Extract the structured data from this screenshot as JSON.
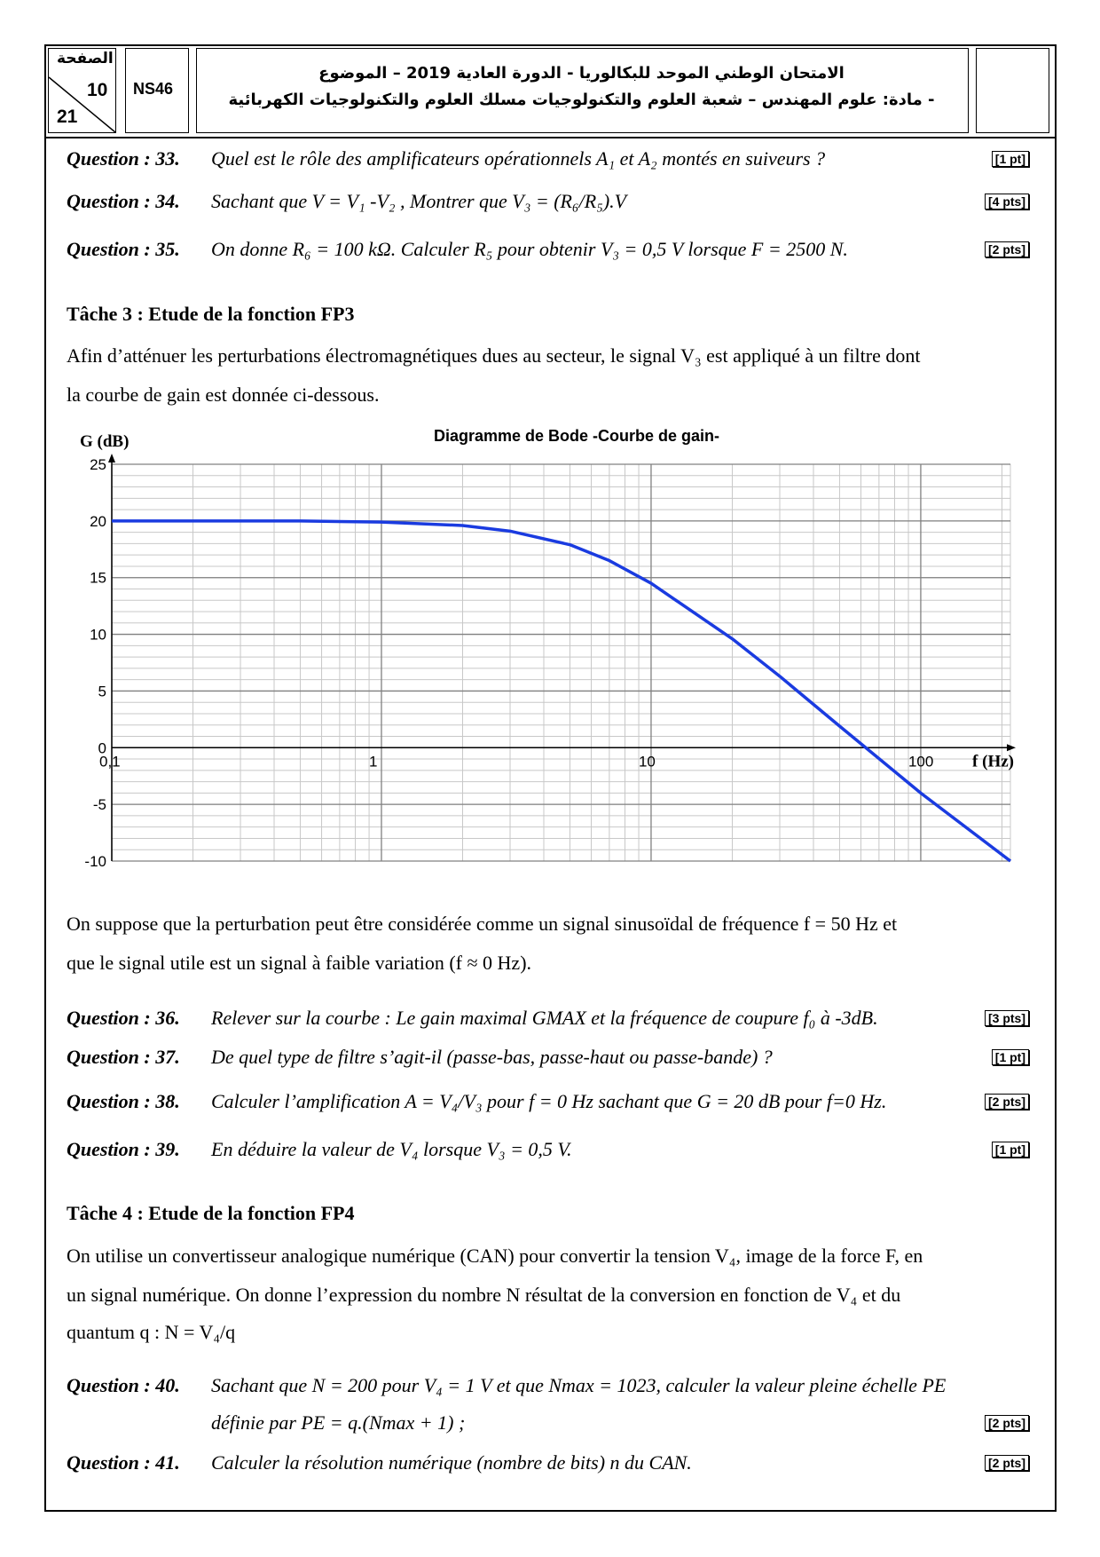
{
  "header": {
    "page_label": "الصفحة",
    "page": "10",
    "total": "21",
    "code": "NS46",
    "title_line1": "الامتحان الوطني الموحد للبكالوريا - الدورة العادية 2019 – الموضوع",
    "title_line2": "- مادة: علوم المهندس – شعبة العلوم والتكنولوجيات مسلك العلوم والتكنولوجيات الكهربائية"
  },
  "questions": [
    {
      "label": "Question : 33.",
      "text": "Quel est le rôle des amplificateurs opérationnels A₁ et A₂ montés en suiveurs ?",
      "points": "[1 pt]"
    },
    {
      "label": "Question : 34.",
      "text": "Sachant que  V = V₁ -V₂ , Montrer que V₃ = (R₆/R₅).V",
      "points": "[4 pts]"
    },
    {
      "label": "Question : 35.",
      "text": "On donne R₆ = 100 kΩ. Calculer R₅ pour obtenir V₃ = 0,5 V lorsque F = 2500 N.",
      "points": "[2 pts]"
    }
  ],
  "task3": {
    "title": "Tâche 3 : Etude de la fonction FP3",
    "paragraph": [
      "Afin d’atténuer les perturbations électromagnétiques dues au secteur, le signal V₃ est appliqué à un filtre dont",
      "la courbe de gain est donnée ci-dessous."
    ]
  },
  "chart_data": {
    "type": "line",
    "title": "Diagramme de Bode -Courbe de gain-",
    "y_label": "G (dB)",
    "x_label": "f (Hz)",
    "x": [
      0.1,
      0.5,
      1,
      2,
      3,
      5,
      7,
      10,
      20,
      30,
      50,
      100,
      215
    ],
    "series": [
      {
        "name": "G",
        "color": "#1a3be0",
        "values": [
          20,
          20,
          19.9,
          19.6,
          19.1,
          17.9,
          16.5,
          14.5,
          9.6,
          6.3,
          1.9,
          -4,
          -10
        ]
      }
    ],
    "xlim": [
      0.1,
      215
    ],
    "ylim": [
      -10,
      25
    ],
    "x_log": true,
    "xticks": [
      {
        "value": 0.1,
        "label": "0,1"
      },
      1,
      10,
      100
    ],
    "yticks": [
      -10,
      -5,
      0,
      5,
      10,
      15,
      20,
      25
    ],
    "grid": true,
    "minor_grid": true
  },
  "after_chart": [
    "On suppose que la perturbation peut être considérée comme un signal sinusoïdal de fréquence f = 50 Hz et",
    "que le signal utile est un signal à faible variation (f ≈ 0 Hz)."
  ],
  "questions2": [
    {
      "label": "Question : 36.",
      "text": "Relever sur la courbe : Le gain maximal GMAX et la fréquence de coupure f₀ à -3dB.",
      "points": "[3 pts]"
    },
    {
      "label": "Question : 37.",
      "text": "De quel type de filtre s’agit-il (passe-bas, passe-haut ou passe-bande) ?",
      "points": "[1 pt]"
    },
    {
      "label": "Question : 38.",
      "text": "Calculer l’amplification A = V₄/V₃ pour f = 0 Hz sachant que G = 20 dB pour f=0 Hz.",
      "points": "[2 pts]"
    },
    {
      "label": "Question : 39.",
      "text": "En déduire la valeur de V₄ lorsque V₃ = 0,5 V.",
      "points": "[1 pt]"
    }
  ],
  "task4": {
    "title": "Tâche 4 : Etude de la fonction FP4",
    "paragraph": [
      "On utilise un convertisseur analogique numérique (CAN) pour convertir la tension V₄, image de la force F, en",
      "un signal numérique. On donne l’expression du nombre N résultat de la conversion en fonction de V₄ et du",
      "quantum q : N = V₄/q"
    ]
  },
  "questions3": [
    {
      "label": "Question : 40.",
      "text": [
        "Sachant que N = 200 pour V₄ = 1 V et que Nmax = 1023, calculer la valeur pleine échelle PE",
        "définie par PE = q.(Nmax + 1)  ;"
      ],
      "points": "[2 pts]"
    },
    {
      "label": "Question : 41.",
      "text": "Calculer la résolution numérique (nombre de bits) n du CAN.",
      "points": "[2 pts]"
    }
  ]
}
